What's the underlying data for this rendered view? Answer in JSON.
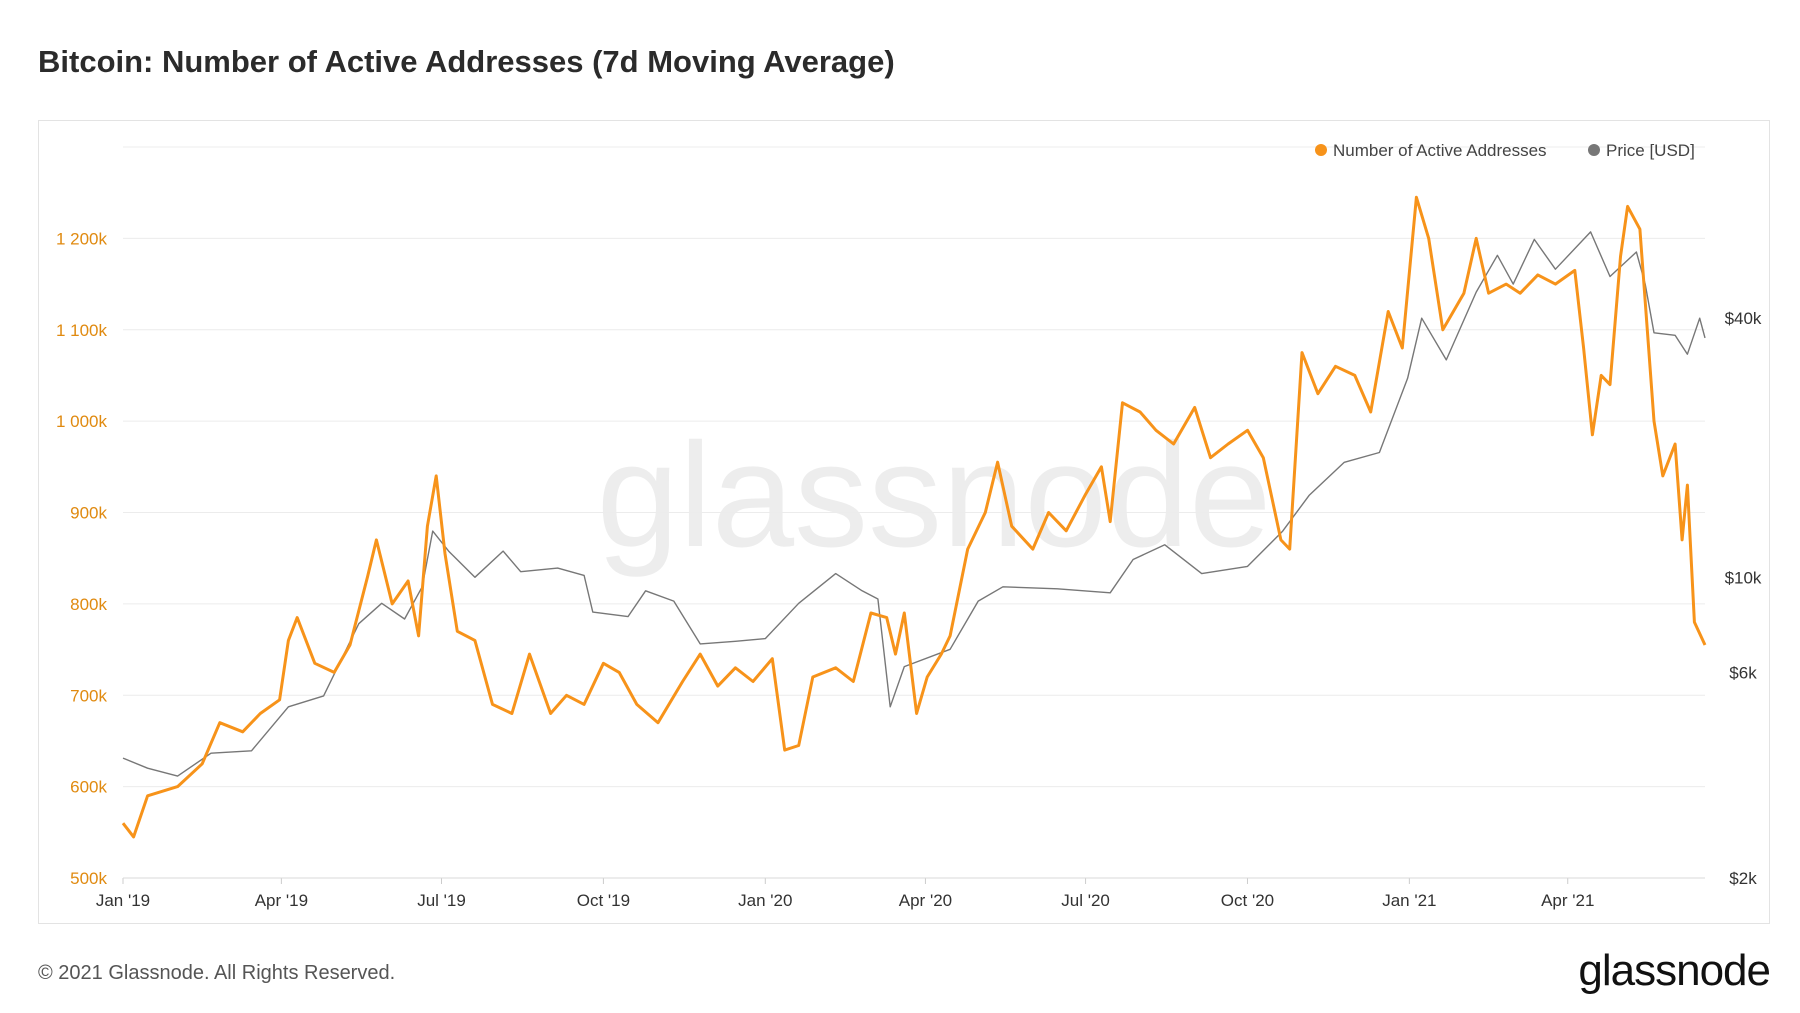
{
  "header": {
    "title": "Bitcoin: Number of Active Addresses (7d Moving Average)"
  },
  "footer": {
    "copyright": "© 2021 Glassnode. All Rights Reserved.",
    "brand": "glassnode"
  },
  "watermark": "glassnode",
  "colors": {
    "addresses": "#f7931a",
    "price": "#777777",
    "left_axis": "#e08a10",
    "grid": "#ececec"
  },
  "chart_data": {
    "type": "line",
    "title": "Bitcoin: Number of Active Addresses (7d Moving Average)",
    "legend_position": "top-right",
    "grid": true,
    "x_ticks": [
      "Jan '19",
      "Apr '19",
      "Jul '19",
      "Oct '19",
      "Jan '20",
      "Apr '20",
      "Jul '20",
      "Oct '20",
      "Jan '21",
      "Apr '21"
    ],
    "x_range": [
      "2019-01-01",
      "2021-06-18"
    ],
    "y_left": {
      "ticks": [
        "500k",
        "600k",
        "700k",
        "800k",
        "900k",
        "1 000k",
        "1 100k",
        "1 200k"
      ],
      "range": [
        500000,
        1300000
      ]
    },
    "y_right": {
      "ticks": [
        "$2k",
        "$6k",
        "$10k",
        "$40k"
      ],
      "scale": "log",
      "range": [
        2000,
        100000
      ]
    },
    "series": [
      {
        "name": "Number of Active Addresses",
        "axis": "left",
        "points": [
          [
            "2019-01-01",
            560000
          ],
          [
            "2019-01-07",
            545000
          ],
          [
            "2019-01-15",
            590000
          ],
          [
            "2019-02-01",
            600000
          ],
          [
            "2019-02-15",
            625000
          ],
          [
            "2019-02-25",
            670000
          ],
          [
            "2019-03-10",
            660000
          ],
          [
            "2019-03-20",
            680000
          ],
          [
            "2019-03-31",
            695000
          ],
          [
            "2019-04-05",
            760000
          ],
          [
            "2019-04-10",
            785000
          ],
          [
            "2019-04-20",
            735000
          ],
          [
            "2019-05-01",
            725000
          ],
          [
            "2019-05-10",
            755000
          ],
          [
            "2019-05-20",
            830000
          ],
          [
            "2019-05-25",
            870000
          ],
          [
            "2019-06-03",
            800000
          ],
          [
            "2019-06-12",
            825000
          ],
          [
            "2019-06-18",
            765000
          ],
          [
            "2019-06-23",
            885000
          ],
          [
            "2019-06-28",
            940000
          ],
          [
            "2019-07-03",
            855000
          ],
          [
            "2019-07-10",
            770000
          ],
          [
            "2019-07-20",
            760000
          ],
          [
            "2019-07-30",
            690000
          ],
          [
            "2019-08-10",
            680000
          ],
          [
            "2019-08-20",
            745000
          ],
          [
            "2019-09-01",
            680000
          ],
          [
            "2019-09-10",
            700000
          ],
          [
            "2019-09-20",
            690000
          ],
          [
            "2019-10-01",
            735000
          ],
          [
            "2019-10-10",
            725000
          ],
          [
            "2019-10-20",
            690000
          ],
          [
            "2019-11-01",
            670000
          ],
          [
            "2019-11-15",
            715000
          ],
          [
            "2019-11-25",
            745000
          ],
          [
            "2019-12-05",
            710000
          ],
          [
            "2019-12-15",
            730000
          ],
          [
            "2019-12-25",
            715000
          ],
          [
            "2020-01-05",
            740000
          ],
          [
            "2020-01-12",
            640000
          ],
          [
            "2020-01-20",
            645000
          ],
          [
            "2020-01-28",
            720000
          ],
          [
            "2020-02-10",
            730000
          ],
          [
            "2020-02-20",
            715000
          ],
          [
            "2020-03-01",
            790000
          ],
          [
            "2020-03-10",
            785000
          ],
          [
            "2020-03-15",
            745000
          ],
          [
            "2020-03-20",
            790000
          ],
          [
            "2020-03-27",
            680000
          ],
          [
            "2020-04-02",
            720000
          ],
          [
            "2020-04-10",
            745000
          ],
          [
            "2020-04-15",
            765000
          ],
          [
            "2020-04-25",
            860000
          ],
          [
            "2020-05-05",
            900000
          ],
          [
            "2020-05-12",
            955000
          ],
          [
            "2020-05-20",
            885000
          ],
          [
            "2020-06-01",
            860000
          ],
          [
            "2020-06-10",
            900000
          ],
          [
            "2020-06-20",
            880000
          ],
          [
            "2020-07-01",
            920000
          ],
          [
            "2020-07-10",
            950000
          ],
          [
            "2020-07-15",
            890000
          ],
          [
            "2020-07-22",
            1020000
          ],
          [
            "2020-08-01",
            1010000
          ],
          [
            "2020-08-10",
            990000
          ],
          [
            "2020-08-20",
            975000
          ],
          [
            "2020-09-01",
            1015000
          ],
          [
            "2020-09-10",
            960000
          ],
          [
            "2020-09-20",
            975000
          ],
          [
            "2020-10-01",
            990000
          ],
          [
            "2020-10-10",
            960000
          ],
          [
            "2020-10-20",
            870000
          ],
          [
            "2020-10-25",
            860000
          ],
          [
            "2020-11-01",
            1075000
          ],
          [
            "2020-11-10",
            1030000
          ],
          [
            "2020-11-20",
            1060000
          ],
          [
            "2020-12-01",
            1050000
          ],
          [
            "2020-12-10",
            1010000
          ],
          [
            "2020-12-20",
            1120000
          ],
          [
            "2020-12-28",
            1080000
          ],
          [
            "2021-01-05",
            1245000
          ],
          [
            "2021-01-12",
            1200000
          ],
          [
            "2021-01-20",
            1100000
          ],
          [
            "2021-02-01",
            1140000
          ],
          [
            "2021-02-08",
            1200000
          ],
          [
            "2021-02-15",
            1140000
          ],
          [
            "2021-02-25",
            1150000
          ],
          [
            "2021-03-05",
            1140000
          ],
          [
            "2021-03-15",
            1160000
          ],
          [
            "2021-03-25",
            1150000
          ],
          [
            "2021-04-05",
            1165000
          ],
          [
            "2021-04-10",
            1080000
          ],
          [
            "2021-04-15",
            985000
          ],
          [
            "2021-04-20",
            1050000
          ],
          [
            "2021-04-25",
            1040000
          ],
          [
            "2021-05-01",
            1180000
          ],
          [
            "2021-05-05",
            1235000
          ],
          [
            "2021-05-12",
            1210000
          ],
          [
            "2021-05-20",
            1000000
          ],
          [
            "2021-05-25",
            940000
          ],
          [
            "2021-06-01",
            975000
          ],
          [
            "2021-06-05",
            870000
          ],
          [
            "2021-06-08",
            930000
          ],
          [
            "2021-06-12",
            780000
          ],
          [
            "2021-06-18",
            755000
          ]
        ]
      },
      {
        "name": "Price [USD]",
        "axis": "right",
        "points": [
          [
            "2019-01-01",
            3800
          ],
          [
            "2019-01-15",
            3600
          ],
          [
            "2019-02-01",
            3450
          ],
          [
            "2019-02-20",
            3900
          ],
          [
            "2019-03-15",
            3950
          ],
          [
            "2019-04-05",
            5000
          ],
          [
            "2019-04-25",
            5300
          ],
          [
            "2019-05-15",
            7800
          ],
          [
            "2019-05-28",
            8700
          ],
          [
            "2019-06-10",
            8000
          ],
          [
            "2019-06-20",
            9500
          ],
          [
            "2019-06-26",
            12800
          ],
          [
            "2019-07-05",
            11500
          ],
          [
            "2019-07-20",
            10000
          ],
          [
            "2019-08-05",
            11500
          ],
          [
            "2019-08-15",
            10300
          ],
          [
            "2019-09-05",
            10500
          ],
          [
            "2019-09-20",
            10100
          ],
          [
            "2019-09-25",
            8300
          ],
          [
            "2019-10-15",
            8100
          ],
          [
            "2019-10-25",
            9300
          ],
          [
            "2019-11-10",
            8800
          ],
          [
            "2019-11-25",
            7000
          ],
          [
            "2019-12-15",
            7100
          ],
          [
            "2020-01-01",
            7200
          ],
          [
            "2020-01-20",
            8700
          ],
          [
            "2020-02-10",
            10200
          ],
          [
            "2020-02-25",
            9300
          ],
          [
            "2020-03-05",
            8900
          ],
          [
            "2020-03-12",
            5000
          ],
          [
            "2020-03-20",
            6200
          ],
          [
            "2020-04-15",
            6800
          ],
          [
            "2020-05-01",
            8800
          ],
          [
            "2020-05-15",
            9500
          ],
          [
            "2020-06-15",
            9400
          ],
          [
            "2020-07-15",
            9200
          ],
          [
            "2020-07-28",
            11000
          ],
          [
            "2020-08-15",
            11900
          ],
          [
            "2020-09-05",
            10200
          ],
          [
            "2020-10-01",
            10600
          ],
          [
            "2020-10-21",
            12800
          ],
          [
            "2020-11-05",
            15500
          ],
          [
            "2020-11-25",
            18500
          ],
          [
            "2020-12-15",
            19500
          ],
          [
            "2020-12-31",
            29000
          ],
          [
            "2021-01-08",
            40000
          ],
          [
            "2021-01-22",
            32000
          ],
          [
            "2021-02-08",
            46000
          ],
          [
            "2021-02-20",
            56000
          ],
          [
            "2021-03-01",
            48000
          ],
          [
            "2021-03-13",
            61000
          ],
          [
            "2021-03-25",
            52000
          ],
          [
            "2021-04-14",
            63500
          ],
          [
            "2021-04-25",
            50000
          ],
          [
            "2021-05-10",
            57000
          ],
          [
            "2021-05-15",
            48000
          ],
          [
            "2021-05-20",
            37000
          ],
          [
            "2021-06-01",
            36500
          ],
          [
            "2021-06-08",
            33000
          ],
          [
            "2021-06-15",
            40000
          ],
          [
            "2021-06-18",
            36000
          ]
        ]
      }
    ]
  }
}
